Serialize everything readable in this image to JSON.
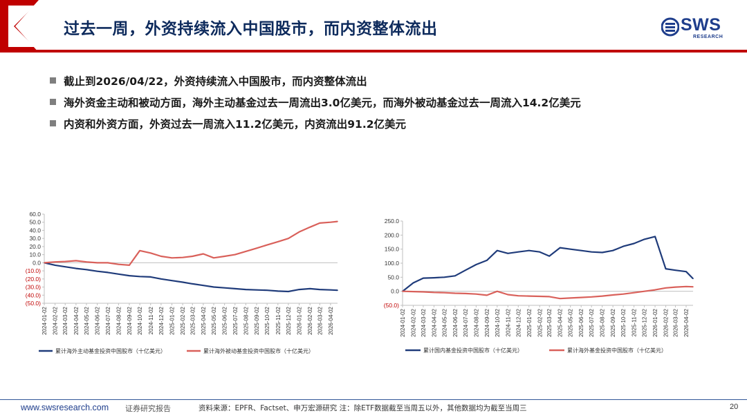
{
  "header": {
    "title": "过去一周，外资持续流入中国股市，而内资整体流出",
    "logo_text": "SWS",
    "logo_sub": "RESEARCH"
  },
  "bullets": [
    "截止到2026/04/22，外资持续流入中国股市，而内资整体流出",
    "海外资金主动和被动方面，海外主动基金过去一周流出3.0亿美元，而海外被动基金过去一周流入14.2亿美元",
    "内资和外资方面，外资过去一周流入11.2亿美元，内资流出91.2亿美元"
  ],
  "footer": {
    "url": "www.swsresearch.com",
    "report": "证券研究报告",
    "source": "资料来源：EPFR、Factset、申万宏源研究 注：除ETF数据截至当周五以外，其他数据均为截至当周三",
    "page": "20"
  },
  "colors": {
    "navy": "#1f3b7a",
    "salmon": "#d9605a",
    "red": "#c00000",
    "grid": "#d9d9d9"
  },
  "chart_data": [
    {
      "type": "line",
      "x": [
        "2024-01-02",
        "2024-02-02",
        "2024-03-02",
        "2024-04-02",
        "2024-05-02",
        "2024-06-02",
        "2024-07-02",
        "2024-08-02",
        "2024-09-02",
        "2024-10-02",
        "2024-11-02",
        "2024-12-02",
        "2025-01-02",
        "2025-02-02",
        "2025-03-02",
        "2025-04-02",
        "2025-05-02",
        "2025-06-02",
        "2025-07-02",
        "2025-08-02",
        "2025-09-02",
        "2025-10-02",
        "2025-11-02",
        "2025-12-02",
        "2026-01-02",
        "2026-02-02",
        "2026-03-02",
        "2026-04-02",
        "2026-04-22"
      ],
      "tick_labels": [
        "2024-01-02",
        "2024-02-02",
        "2024-03-02",
        "2024-04-02",
        "2024-05-02",
        "2024-06-02",
        "2024-07-02",
        "2024-08-02",
        "2024-09-02",
        "2024-10-02",
        "2024-11-02",
        "2024-12-02",
        "2025-01-02",
        "2025-02-02",
        "2025-03-02",
        "2025-04-02",
        "2025-05-02",
        "2025-06-02",
        "2025-07-02",
        "2025-08-02",
        "2025-09-02",
        "2025-10-02",
        "2025-11-02",
        "2025-12-02",
        "2026-01-02",
        "2026-02-02",
        "2026-03-02",
        "2026-04-02"
      ],
      "y_ticks": [
        "60.0",
        "50.0",
        "40.0",
        "30.0",
        "20.0",
        "10.0",
        "0.0",
        "(10.0)",
        "(20.0)",
        "(30.0)",
        "(40.0)",
        "(50.0)"
      ],
      "ylim": [
        -50,
        60
      ],
      "series": [
        {
          "name": "累计海外主动基金投资中国股市（十亿美元）",
          "color": "#1f3b7a",
          "values": [
            0,
            -3,
            -5,
            -7,
            -8.5,
            -10.5,
            -12,
            -14,
            -16,
            -17,
            -17.5,
            -20,
            -22,
            -24,
            -26,
            -28,
            -30,
            -31,
            -32,
            -33,
            -33.5,
            -34,
            -35,
            -35.5,
            -33,
            -32,
            -33,
            -33.5,
            -34
          ]
        },
        {
          "name": "累计海外被动基金投资中国股市（十亿美元）",
          "color": "#d9605a",
          "values": [
            0,
            1,
            1.5,
            2.5,
            1,
            0,
            0,
            -2,
            -3,
            15,
            12,
            8,
            6,
            6.5,
            8,
            11,
            6,
            8,
            10,
            14,
            18,
            22,
            26,
            30,
            38,
            44,
            49,
            50,
            51
          ]
        }
      ]
    },
    {
      "type": "line",
      "x": [
        "2024-01-02",
        "2024-02-02",
        "2024-03-02",
        "2024-04-02",
        "2024-05-02",
        "2024-06-02",
        "2024-07-02",
        "2024-08-02",
        "2024-09-02",
        "2024-10-02",
        "2024-11-02",
        "2024-12-02",
        "2025-01-02",
        "2025-02-02",
        "2025-03-02",
        "2025-04-02",
        "2025-05-02",
        "2025-06-02",
        "2025-07-02",
        "2025-08-02",
        "2025-09-02",
        "2025-10-02",
        "2025-11-02",
        "2025-12-02",
        "2026-01-02",
        "2026-02-02",
        "2026-03-02",
        "2026-04-02",
        "2026-04-22"
      ],
      "tick_labels": [
        "2024-01-02",
        "2024-02-02",
        "2024-03-02",
        "2024-04-02",
        "2024-05-02",
        "2024-06-02",
        "2024-07-02",
        "2024-08-02",
        "2024-09-02",
        "2024-10-02",
        "2024-11-02",
        "2024-12-02",
        "2025-01-02",
        "2025-02-02",
        "2025-03-02",
        "2025-04-02",
        "2025-05-02",
        "2025-06-02",
        "2025-07-02",
        "2025-08-02",
        "2025-09-02",
        "2025-10-02",
        "2025-11-02",
        "2025-12-02",
        "2026-01-02",
        "2026-02-02",
        "2026-03-02",
        "2026-04-02"
      ],
      "y_ticks": [
        "250.0",
        "200.0",
        "150.0",
        "100.0",
        "50.0",
        "0.0",
        "(50.0)"
      ],
      "ylim": [
        -50,
        250
      ],
      "series": [
        {
          "name": "累计国内基金投资中国股市（十亿美元）",
          "color": "#1f3b7a",
          "values": [
            0,
            30,
            47,
            48,
            50,
            55,
            75,
            95,
            110,
            145,
            135,
            140,
            145,
            140,
            125,
            155,
            150,
            145,
            140,
            138,
            145,
            160,
            170,
            185,
            195,
            80,
            75,
            70,
            45
          ]
        },
        {
          "name": "累计海外基金投资中国股市（十亿美元）",
          "color": "#d9605a",
          "values": [
            0,
            -1,
            -2,
            -4,
            -5,
            -7,
            -8,
            -10,
            -14,
            0,
            -12,
            -16,
            -17,
            -18,
            -19,
            -26,
            -24,
            -22,
            -20,
            -17,
            -13,
            -10,
            -5,
            0,
            5,
            12,
            15,
            17,
            16
          ]
        }
      ]
    }
  ]
}
